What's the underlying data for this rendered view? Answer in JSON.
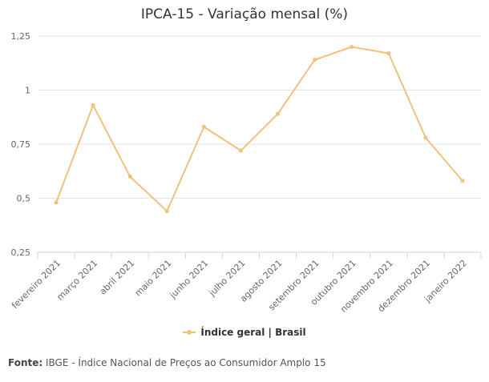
{
  "chart_data": {
    "type": "line",
    "title": "IPCA-15 - Variação mensal (%)",
    "categories": [
      "fevereiro 2021",
      "março 2021",
      "abril 2021",
      "maio 2021",
      "junho 2021",
      "julho 2021",
      "agosto 2021",
      "setembro 2021",
      "outubro 2021",
      "novembro 2021",
      "dezembro 2021",
      "janeiro 2022"
    ],
    "series": [
      {
        "name": "Índice geral | Brasil",
        "values": [
          0.48,
          0.93,
          0.6,
          0.44,
          0.83,
          0.72,
          0.89,
          1.14,
          1.2,
          1.17,
          0.78,
          0.58
        ]
      }
    ],
    "ylim": [
      0.25,
      1.25
    ],
    "yticks": [
      0.25,
      0.5,
      0.75,
      1,
      1.25
    ],
    "ytick_labels": [
      "0,25",
      "0,5",
      "0,75",
      "1",
      "1,25"
    ],
    "grid": true,
    "legend_position": "bottom-center",
    "color": "#f0c27b"
  },
  "source": {
    "label": "Fonte:",
    "text": "IBGE - Índice Nacional de Preços ao Consumidor Amplo 15"
  }
}
